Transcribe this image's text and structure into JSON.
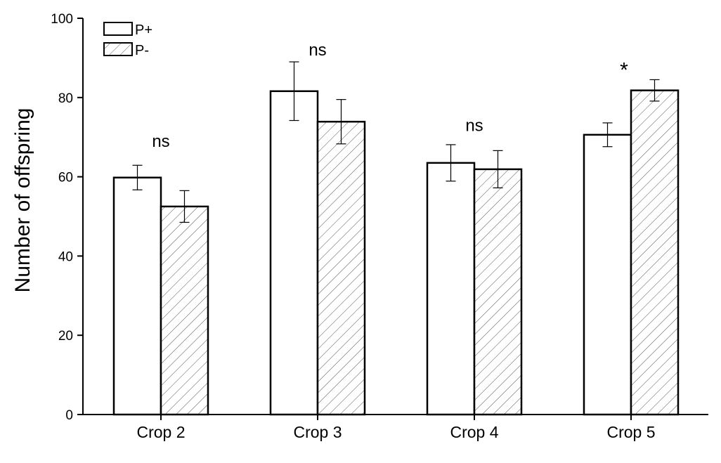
{
  "chart_data": {
    "type": "bar",
    "title": "",
    "xlabel": "",
    "ylabel": "Number of offspring",
    "ylim": [
      0,
      100
    ],
    "yticks": [
      0,
      20,
      40,
      60,
      80,
      100
    ],
    "grid": false,
    "legend_position": "top-left",
    "categories": [
      "Crop 2",
      "Crop 3",
      "Crop 4",
      "Crop 5"
    ],
    "series": [
      {
        "name": "P+",
        "fill": "plain",
        "values": [
          59.8,
          81.6,
          63.5,
          70.6
        ],
        "errors": [
          3.1,
          7.4,
          4.6,
          3.0
        ]
      },
      {
        "name": "P-",
        "fill": "hatched",
        "values": [
          52.5,
          73.9,
          61.9,
          81.8
        ],
        "errors": [
          4.0,
          5.6,
          4.7,
          2.7
        ]
      }
    ],
    "annotations": [
      {
        "category": "Crop 2",
        "text": "ns",
        "y": 69
      },
      {
        "category": "Crop 3",
        "text": "ns",
        "y": 92
      },
      {
        "category": "Crop 4",
        "text": "ns",
        "y": 73
      },
      {
        "category": "Crop 5",
        "text": "*",
        "y": 88
      }
    ],
    "colors": {
      "stroke": "#000000",
      "bar_fill": "#ffffff",
      "hatch": "#555555"
    }
  }
}
